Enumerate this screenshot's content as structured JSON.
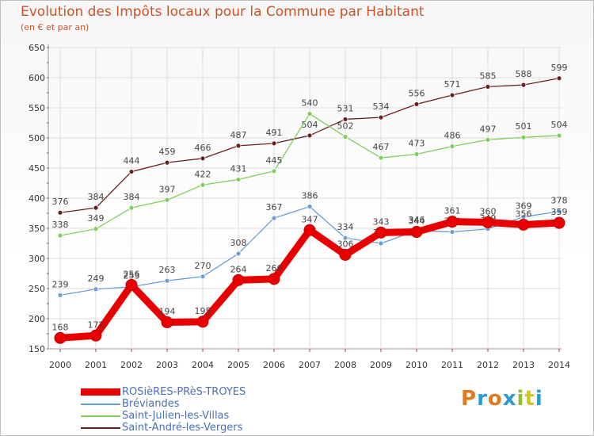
{
  "header": {
    "title": "Evolution des Impôts locaux pour la Commune par Habitant",
    "subtitle": "(en € et par an)"
  },
  "logo": {
    "text": "Proxiti",
    "colors": [
      "#e07a1f",
      "#2c9ad8",
      "#e07a1f",
      "#2c9ad8",
      "#8dbf2a",
      "#d8c21f",
      "#2c9ad8"
    ]
  },
  "colors": {
    "title": "#c8542a",
    "grid": "#dddddd",
    "axis_text": "#333333",
    "tick_mark": "#cc3333"
  },
  "chart_data": {
    "type": "line",
    "x": [
      2000,
      2001,
      2002,
      2003,
      2004,
      2005,
      2006,
      2007,
      2008,
      2009,
      2010,
      2011,
      2012,
      2013,
      2014
    ],
    "ylim": [
      150,
      650
    ],
    "yticks": [
      150,
      200,
      250,
      300,
      350,
      400,
      450,
      500,
      550,
      600,
      650
    ],
    "grid": true,
    "legend_position": "bottom-left",
    "series": [
      {
        "name": "Saint-André-les-Vergers",
        "color": "#6b1f1f",
        "values": [
          376,
          384,
          444,
          459,
          466,
          487,
          491,
          504,
          531,
          534,
          556,
          571,
          585,
          588,
          599
        ],
        "labels": [
          "376",
          "384",
          "444",
          "459",
          "466",
          "487",
          "491",
          "504",
          "531",
          "534",
          "556",
          "571",
          "585",
          "588",
          "599"
        ]
      },
      {
        "name": "Saint-Julien-les-Villas",
        "color": "#7ed05a",
        "values": [
          338,
          349,
          384,
          397,
          422,
          431,
          445,
          540,
          502,
          467,
          473,
          486,
          497,
          501,
          504
        ],
        "labels": [
          "338",
          "349",
          "384",
          "397",
          "422",
          "431",
          "445",
          "540",
          "502",
          "467",
          "473",
          "486",
          "497",
          "501",
          "504"
        ]
      },
      {
        "name": "Bréviandes",
        "color": "#6a9fd4",
        "values": [
          239,
          249,
          253,
          263,
          270,
          308,
          367,
          386,
          334,
          325,
          346,
          344,
          349,
          369,
          378
        ],
        "labels": [
          "239",
          "249",
          "253",
          "263",
          "270",
          "308",
          "367",
          "386",
          "334",
          "325",
          "346",
          "344",
          "349",
          "369",
          "378"
        ]
      },
      {
        "name": "ROSièRES-PRèS-TROYES",
        "color": "#e80000",
        "values": [
          168,
          172,
          256,
          194,
          195,
          264,
          266,
          347,
          306,
          343,
          344,
          361,
          360,
          356,
          359
        ],
        "labels": [
          "168",
          "172",
          "256",
          "194",
          "195",
          "264",
          "266",
          "347",
          "306",
          "343",
          "344",
          "361",
          "360",
          "356",
          "359"
        ]
      }
    ]
  },
  "legend": [
    {
      "label": "ROSièRES-PRèS-TROYES",
      "color": "#e80000",
      "thick": true
    },
    {
      "label": "Bréviandes",
      "color": "#6a9fd4",
      "thick": false
    },
    {
      "label": "Saint-Julien-les-Villas",
      "color": "#7ed05a",
      "thick": false
    },
    {
      "label": "Saint-André-les-Vergers",
      "color": "#6b1f1f",
      "thick": false
    }
  ]
}
